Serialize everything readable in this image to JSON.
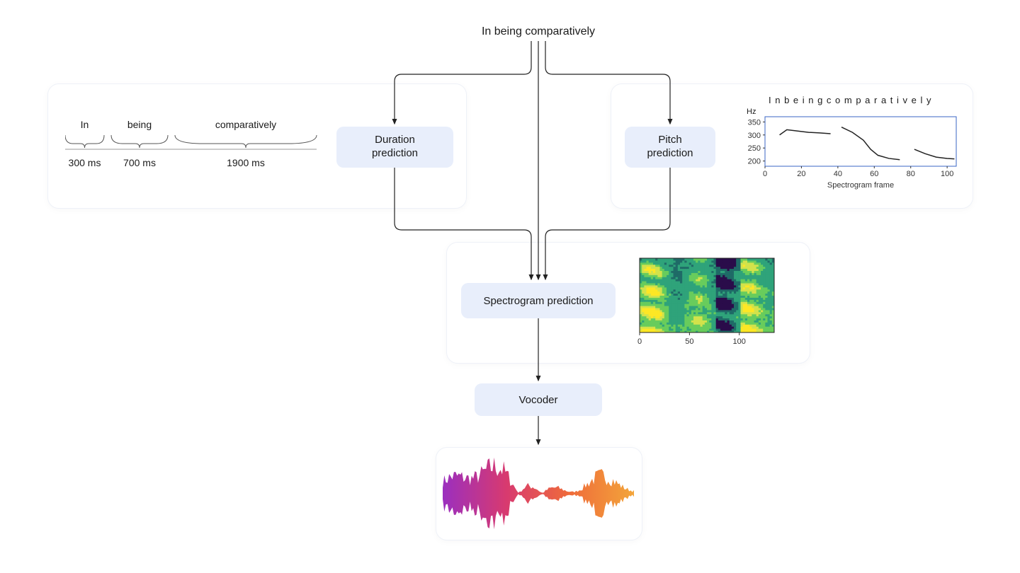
{
  "title": "In being comparatively",
  "duration_box": "Duration\nprediction",
  "pitch_box": "Pitch\nprediction",
  "spectrogram_box": "Spectrogram prediction",
  "vocoder_box": "Vocoder",
  "duration_panel": {
    "words": [
      "In",
      "being",
      "comparatively"
    ],
    "durations": [
      "300 ms",
      "700 ms",
      "1900 ms"
    ],
    "widths": [
      55,
      80,
      200
    ],
    "brace_color": "#555"
  },
  "pitch_chart": {
    "title_letters": "I n b e i n g c o m p a r a t i v e l y",
    "y_unit": "Hz",
    "y_ticks": [
      200,
      250,
      300,
      350
    ],
    "x_ticks": [
      0,
      20,
      40,
      60,
      80,
      100
    ],
    "x_label": "Spectrogram frame",
    "xlim": [
      0,
      105
    ],
    "ylim": [
      180,
      370
    ],
    "border_color": "#3a66c4",
    "line_color": "#222",
    "segments": [
      [
        [
          8,
          300
        ],
        [
          12,
          320
        ],
        [
          18,
          315
        ],
        [
          24,
          310
        ],
        [
          30,
          308
        ],
        [
          36,
          305
        ]
      ],
      [
        [
          42,
          330
        ],
        [
          48,
          310
        ],
        [
          54,
          280
        ],
        [
          58,
          245
        ],
        [
          62,
          222
        ],
        [
          68,
          210
        ],
        [
          74,
          205
        ]
      ],
      [
        [
          82,
          245
        ],
        [
          88,
          228
        ],
        [
          94,
          215
        ],
        [
          100,
          210
        ],
        [
          104,
          208
        ]
      ]
    ]
  },
  "spectrogram": {
    "x_ticks": [
      0,
      50,
      100
    ],
    "xlim": [
      0,
      135
    ],
    "bg": "#2a0c4a",
    "colors": [
      "#2a0c4a",
      "#1f6b67",
      "#2fa37a",
      "#68cc5c",
      "#d2e24b",
      "#fde725"
    ]
  },
  "waveform": {
    "gradient": [
      "#9b2fbf",
      "#d83a6f",
      "#ef6c3a",
      "#f3a53a"
    ],
    "n": 120
  },
  "arrow_color": "#222"
}
